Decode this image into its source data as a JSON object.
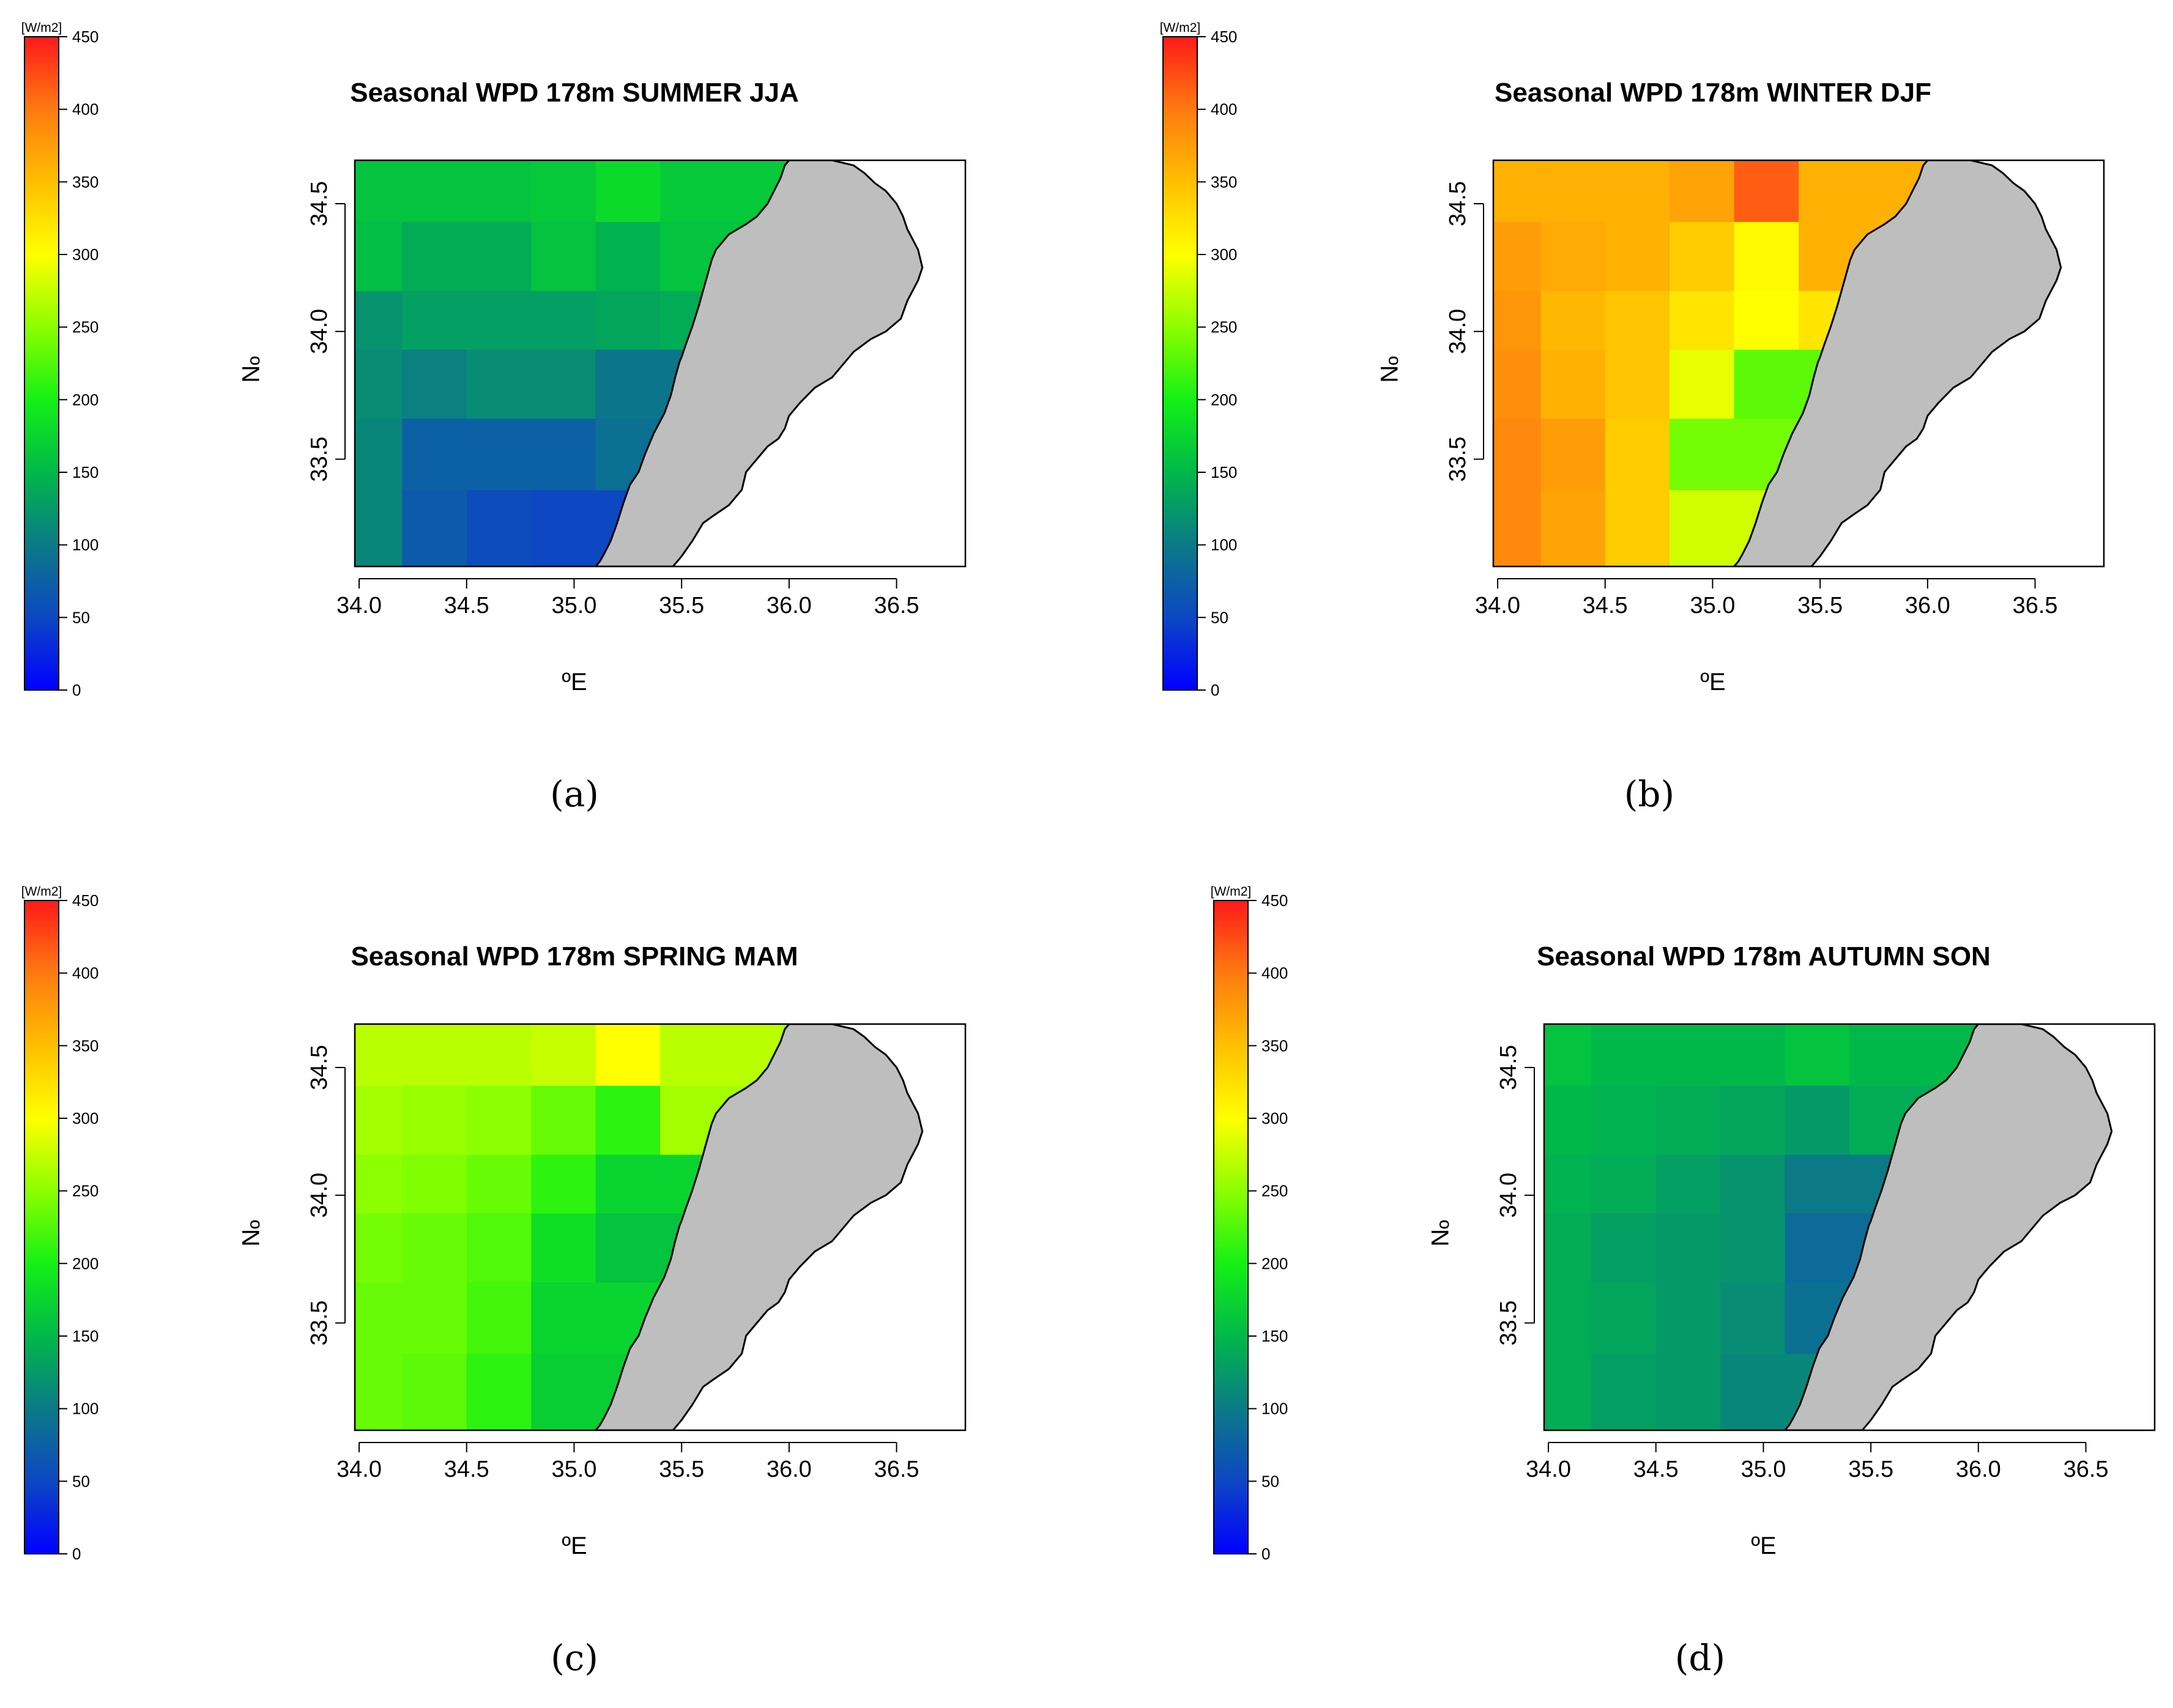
{
  "figure": {
    "colorbar": {
      "unit": "[W/m2]",
      "ticks": [
        0,
        50,
        100,
        150,
        200,
        250,
        300,
        350,
        400,
        450
      ],
      "colors": [
        "#0000ff",
        "#0d47c2",
        "#0b7a86",
        "#00b84a",
        "#14f014",
        "#8cff00",
        "#ffff00",
        "#ffbf00",
        "#ff7a10",
        "#ff1a1a"
      ]
    },
    "axes": {
      "xlabel": "ºE",
      "ylabel": "ºN",
      "xticks": [
        "34.0",
        "34.5",
        "35.0",
        "35.5",
        "36.0",
        "36.5"
      ],
      "yticks": [
        "33.5",
        "34.0",
        "34.5"
      ],
      "xlim": [
        33.98,
        36.82
      ],
      "ylim": [
        33.08,
        34.67
      ]
    },
    "land_color": "#bebebe",
    "grid_lon_edges": [
      33.98,
      34.2,
      34.5,
      34.8,
      35.1,
      35.4,
      36.0
    ],
    "grid_lat_edges": [
      33.08,
      33.38,
      33.66,
      33.93,
      34.16,
      34.43,
      34.67
    ],
    "panels": [
      {
        "id": "a",
        "label": "(a)",
        "title": "Seasonal WPD 178m SUMMER JJA",
        "cells": [
          [
            110,
            70,
            55,
            50,
            50,
            60
          ],
          [
            110,
            75,
            75,
            75,
            90,
            90
          ],
          [
            115,
            105,
            115,
            115,
            95,
            95
          ],
          [
            120,
            130,
            130,
            130,
            135,
            140
          ],
          [
            155,
            140,
            140,
            160,
            145,
            160
          ],
          [
            160,
            160,
            160,
            165,
            180,
            165
          ]
        ]
      },
      {
        "id": "b",
        "label": "(b)",
        "title": "Seasonal WPD 178m WINTER DJF",
        "cells": [
          [
            390,
            370,
            340,
            280,
            280,
            280
          ],
          [
            390,
            375,
            340,
            240,
            240,
            240
          ],
          [
            385,
            360,
            345,
            290,
            230,
            230
          ],
          [
            380,
            355,
            345,
            320,
            300,
            320
          ],
          [
            375,
            365,
            360,
            340,
            305,
            360
          ],
          [
            360,
            360,
            360,
            370,
            415,
            360
          ]
        ]
      },
      {
        "id": "c",
        "label": "(c)",
        "title": "Seasonal WPD 178m SPRING MAM",
        "cells": [
          [
            235,
            230,
            210,
            170,
            170,
            170
          ],
          [
            235,
            235,
            220,
            175,
            175,
            175
          ],
          [
            240,
            235,
            225,
            185,
            160,
            160
          ],
          [
            250,
            245,
            235,
            210,
            175,
            175
          ],
          [
            260,
            255,
            250,
            235,
            210,
            260
          ],
          [
            270,
            270,
            270,
            275,
            300,
            270
          ]
        ]
      },
      {
        "id": "d",
        "label": "(d)",
        "title": "Seasonal WPD 178m AUTUMN SON",
        "cells": [
          [
            140,
            130,
            125,
            110,
            110,
            110
          ],
          [
            140,
            135,
            125,
            115,
            90,
            90
          ],
          [
            140,
            130,
            125,
            120,
            85,
            85
          ],
          [
            145,
            140,
            130,
            120,
            100,
            100
          ],
          [
            150,
            145,
            140,
            135,
            125,
            140
          ],
          [
            160,
            150,
            150,
            150,
            160,
            150
          ]
        ]
      }
    ],
    "coastline": [
      [
        35.1,
        33.08
      ],
      [
        35.12,
        33.1
      ],
      [
        35.14,
        33.13
      ],
      [
        35.17,
        33.18
      ],
      [
        35.2,
        33.25
      ],
      [
        35.23,
        33.33
      ],
      [
        35.26,
        33.4
      ],
      [
        35.3,
        33.45
      ],
      [
        35.33,
        33.52
      ],
      [
        35.37,
        33.6
      ],
      [
        35.42,
        33.68
      ],
      [
        35.45,
        33.75
      ],
      [
        35.47,
        33.82
      ],
      [
        35.49,
        33.88
      ],
      [
        35.5,
        33.9
      ],
      [
        35.52,
        33.95
      ],
      [
        35.55,
        34.02
      ],
      [
        35.58,
        34.1
      ],
      [
        35.6,
        34.16
      ],
      [
        35.62,
        34.22
      ],
      [
        35.64,
        34.28
      ],
      [
        35.66,
        34.32
      ],
      [
        35.72,
        34.38
      ],
      [
        35.8,
        34.42
      ],
      [
        35.85,
        34.45
      ],
      [
        35.9,
        34.5
      ],
      [
        35.93,
        34.55
      ],
      [
        35.96,
        34.6
      ],
      [
        35.98,
        34.65
      ],
      [
        36.0,
        34.67
      ]
    ],
    "lebanon_east": [
      [
        36.0,
        34.67
      ],
      [
        36.2,
        34.67
      ],
      [
        36.3,
        34.65
      ],
      [
        36.35,
        34.62
      ],
      [
        36.4,
        34.58
      ],
      [
        36.45,
        34.55
      ],
      [
        36.5,
        34.5
      ],
      [
        36.53,
        34.45
      ],
      [
        36.55,
        34.4
      ],
      [
        36.6,
        34.32
      ],
      [
        36.62,
        34.25
      ],
      [
        36.6,
        34.2
      ],
      [
        36.55,
        34.12
      ],
      [
        36.52,
        34.05
      ],
      [
        36.45,
        34.0
      ],
      [
        36.38,
        33.97
      ],
      [
        36.3,
        33.92
      ],
      [
        36.25,
        33.87
      ],
      [
        36.2,
        33.82
      ],
      [
        36.12,
        33.78
      ],
      [
        36.05,
        33.72
      ],
      [
        36.0,
        33.67
      ],
      [
        35.98,
        33.62
      ],
      [
        35.95,
        33.58
      ],
      [
        35.9,
        33.55
      ],
      [
        35.85,
        33.5
      ],
      [
        35.8,
        33.45
      ],
      [
        35.78,
        33.38
      ],
      [
        35.72,
        33.32
      ],
      [
        35.65,
        33.28
      ],
      [
        35.6,
        33.25
      ],
      [
        35.55,
        33.18
      ],
      [
        35.5,
        33.12
      ],
      [
        35.46,
        33.08
      ]
    ]
  }
}
